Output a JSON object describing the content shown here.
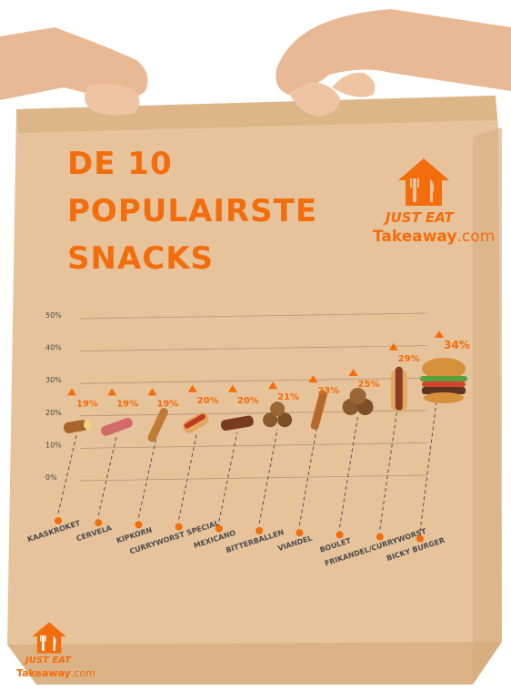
{
  "title_lines": [
    "DE 10",
    "POPULAIRSTE",
    "SNACKS"
  ],
  "brand": {
    "just_eat": "JUST EAT",
    "takeaway": "Takeaway",
    "dotcom": ".com",
    "icon": "house-fork-knife-icon"
  },
  "colors": {
    "accent": "#f36d0c",
    "bag": "#e6c39b",
    "bag_shadow": "#d7ae80",
    "axis_text": "#4a4a4a",
    "grid": "#9c8466",
    "skin": "#e9b894"
  },
  "chart_data": {
    "type": "bar",
    "title": "DE 10 POPULAIRSTE SNACKS",
    "ylim": [
      0,
      50
    ],
    "y_ticks": [
      "50%",
      "40%",
      "30%",
      "20%",
      "10%",
      "0%"
    ],
    "y_tick_values": [
      50,
      40,
      30,
      20,
      10,
      0
    ],
    "categories": [
      "KAASKROKET",
      "CERVELA",
      "KIPKORN",
      "CURRYWORST SPECIAL",
      "MEXICANO",
      "BITTERBALLEN",
      "VIANDEL",
      "BOULET",
      "FRIKANDEL/CURRYWORST",
      "BICKY BURGER"
    ],
    "values": [
      19,
      19,
      19,
      20,
      20,
      21,
      23,
      25,
      29,
      34
    ],
    "value_labels": [
      "19%",
      "19%",
      "19%",
      "20%",
      "20%",
      "21%",
      "23%",
      "25%",
      "29%",
      "34%"
    ],
    "icons": [
      "kaaskroket-icon",
      "cervela-icon",
      "kipkorn-icon",
      "curryworst-special-icon",
      "mexicano-icon",
      "bitterballen-icon",
      "viandel-icon",
      "boulet-icon",
      "frikandel-icon",
      "bicky-burger-icon"
    ],
    "grid": true,
    "legend": "none"
  }
}
